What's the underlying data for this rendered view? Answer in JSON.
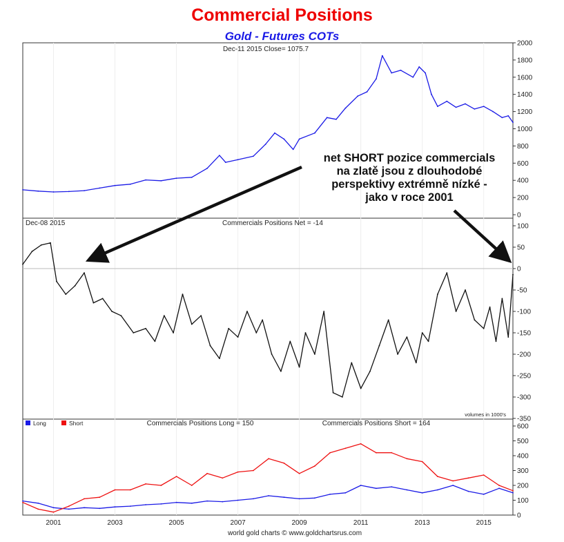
{
  "header": {
    "title": "Commercial Positions",
    "subtitle": "Gold - Futures COTs"
  },
  "colors": {
    "title": "#ee0000",
    "subtitle": "#1a1ae6",
    "gold_line": "#1a1ae6",
    "net_line": "#111111",
    "long_line": "#1a1ae6",
    "short_line": "#ee1111",
    "arrow": "#111111"
  },
  "panels": {
    "price": {
      "header": "Dec-11 2015   Close= 1075.7"
    },
    "net": {
      "header_left": "Dec-08 2015",
      "header_center": "Commercials Positions Net = -14",
      "units_note": "volumes in 1000's"
    },
    "longshort": {
      "legend": [
        {
          "label": "Long",
          "color": "#1a1ae6"
        },
        {
          "label": "Short",
          "color": "#ee1111"
        }
      ],
      "header_long": "Commercials Positions Long = 150",
      "header_short": "Commercials Positions Short = 164"
    }
  },
  "annotation": {
    "lines": [
      "net SHORT pozice commercials",
      "na zlatě jsou z dlouhodobé",
      "perspektivy extrémně nízké -",
      "jako v roce 2001"
    ]
  },
  "credit": "world gold charts © www.goldchartsrus.com",
  "chart_data": [
    {
      "type": "line",
      "panel": "price",
      "x_ticks": [
        "2001",
        "2003",
        "2005",
        "2007",
        "2009",
        "2011",
        "2013",
        "2015"
      ],
      "ylim": [
        0,
        2000
      ],
      "y_ticks": [
        0,
        200,
        400,
        600,
        800,
        1000,
        1200,
        1400,
        1600,
        1800,
        2000
      ],
      "series": [
        {
          "x": [
            2000.0,
            2000.5,
            2001.0,
            2001.5,
            2002.0,
            2002.5,
            2003.0,
            2003.5,
            2004.0,
            2004.5,
            2005.0,
            2005.5,
            2006.0,
            2006.4,
            2006.6,
            2007.0,
            2007.5,
            2007.9,
            2008.2,
            2008.5,
            2008.8,
            2009.0,
            2009.5,
            2009.9,
            2010.2,
            2010.5,
            2010.9,
            2011.2,
            2011.5,
            2011.7,
            2012.0,
            2012.3,
            2012.7,
            2012.9,
            2013.1,
            2013.3,
            2013.5,
            2013.8,
            2014.1,
            2014.4,
            2014.7,
            2015.0,
            2015.3,
            2015.6,
            2015.8,
            2015.95
          ],
          "values": [
            290,
            275,
            265,
            270,
            280,
            310,
            340,
            355,
            405,
            395,
            425,
            435,
            540,
            690,
            610,
            640,
            680,
            820,
            950,
            880,
            760,
            880,
            950,
            1130,
            1110,
            1240,
            1380,
            1430,
            1580,
            1850,
            1650,
            1680,
            1600,
            1720,
            1650,
            1400,
            1260,
            1320,
            1250,
            1290,
            1230,
            1260,
            1200,
            1130,
            1150,
            1075
          ]
        }
      ]
    },
    {
      "type": "line",
      "panel": "net",
      "title": "Commercials Positions Net = -14",
      "ylim": [
        -350,
        100
      ],
      "y_ticks": [
        100,
        50,
        0,
        -50,
        -100,
        -150,
        -200,
        -250,
        -300,
        -350
      ],
      "series": [
        {
          "x": [
            2000.0,
            2000.3,
            2000.6,
            2000.9,
            2001.1,
            2001.4,
            2001.7,
            2002.0,
            2002.3,
            2002.6,
            2002.9,
            2003.2,
            2003.6,
            2004.0,
            2004.3,
            2004.6,
            2004.9,
            2005.2,
            2005.5,
            2005.8,
            2006.1,
            2006.4,
            2006.7,
            2007.0,
            2007.3,
            2007.6,
            2007.8,
            2008.1,
            2008.4,
            2008.7,
            2009.0,
            2009.2,
            2009.5,
            2009.8,
            2010.1,
            2010.4,
            2010.7,
            2011.0,
            2011.3,
            2011.6,
            2011.9,
            2012.2,
            2012.5,
            2012.8,
            2013.0,
            2013.2,
            2013.5,
            2013.8,
            2014.1,
            2014.4,
            2014.7,
            2015.0,
            2015.2,
            2015.4,
            2015.6,
            2015.8,
            2015.95
          ],
          "values": [
            10,
            40,
            55,
            60,
            -30,
            -60,
            -40,
            -10,
            -80,
            -70,
            -100,
            -110,
            -150,
            -140,
            -170,
            -110,
            -150,
            -60,
            -130,
            -110,
            -180,
            -210,
            -140,
            -160,
            -100,
            -150,
            -120,
            -200,
            -240,
            -170,
            -230,
            -150,
            -200,
            -100,
            -290,
            -300,
            -220,
            -280,
            -240,
            -180,
            -120,
            -200,
            -160,
            -220,
            -150,
            -170,
            -60,
            -10,
            -100,
            -50,
            -120,
            -140,
            -90,
            -170,
            -70,
            -160,
            -14
          ]
        }
      ]
    },
    {
      "type": "line",
      "panel": "longshort",
      "ylim": [
        0,
        600
      ],
      "y_ticks": [
        0,
        100,
        200,
        300,
        400,
        500,
        600
      ],
      "series": [
        {
          "name": "Long",
          "x": [
            2000.0,
            2000.5,
            2001.0,
            2001.5,
            2002.0,
            2002.5,
            2003.0,
            2003.5,
            2004.0,
            2004.5,
            2005.0,
            2005.5,
            2006.0,
            2006.5,
            2007.0,
            2007.5,
            2008.0,
            2008.5,
            2009.0,
            2009.5,
            2010.0,
            2010.5,
            2011.0,
            2011.5,
            2012.0,
            2012.5,
            2013.0,
            2013.5,
            2014.0,
            2014.5,
            2015.0,
            2015.5,
            2015.95
          ],
          "values": [
            95,
            80,
            50,
            40,
            50,
            45,
            55,
            60,
            70,
            75,
            85,
            80,
            95,
            90,
            100,
            110,
            130,
            120,
            110,
            115,
            140,
            150,
            200,
            180,
            190,
            170,
            150,
            170,
            200,
            160,
            140,
            180,
            150
          ]
        },
        {
          "name": "Short",
          "x": [
            2000.0,
            2000.5,
            2001.0,
            2001.5,
            2002.0,
            2002.5,
            2003.0,
            2003.5,
            2004.0,
            2004.5,
            2005.0,
            2005.5,
            2006.0,
            2006.5,
            2007.0,
            2007.5,
            2008.0,
            2008.5,
            2009.0,
            2009.5,
            2010.0,
            2010.5,
            2011.0,
            2011.5,
            2012.0,
            2012.5,
            2013.0,
            2013.5,
            2014.0,
            2014.5,
            2015.0,
            2015.5,
            2015.95
          ],
          "values": [
            85,
            40,
            20,
            60,
            110,
            120,
            170,
            170,
            210,
            200,
            260,
            200,
            280,
            250,
            290,
            300,
            380,
            350,
            280,
            330,
            420,
            450,
            480,
            420,
            420,
            380,
            360,
            260,
            230,
            250,
            270,
            200,
            164
          ]
        }
      ]
    }
  ]
}
